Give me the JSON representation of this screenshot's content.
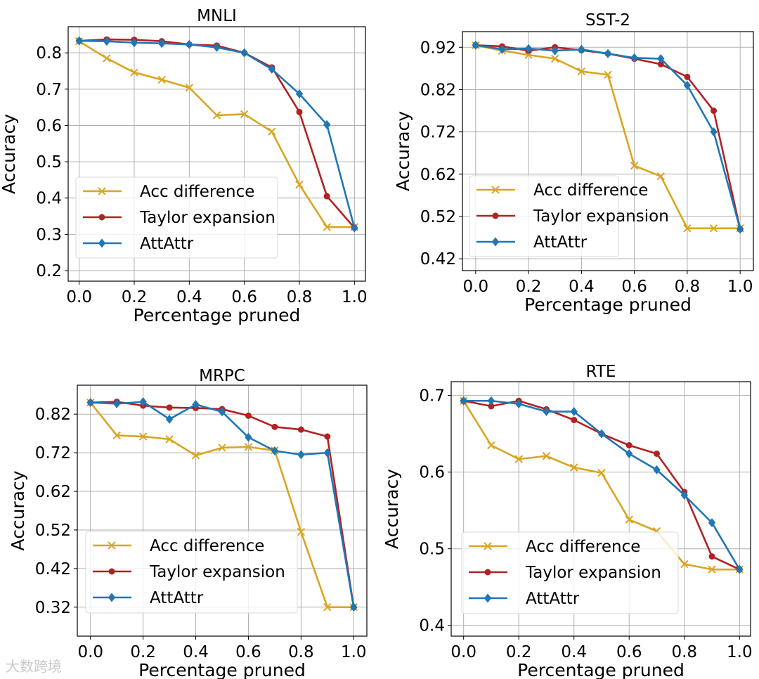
{
  "watermark": "大数跨境",
  "colors": {
    "acc_difference": "#DAA520",
    "taylor_expansion": "#B22222",
    "attattr": "#1F77B4",
    "grid": "#b0b0b0"
  },
  "chart_data": [
    {
      "type": "line",
      "title": "MNLI",
      "xlabel": "Percentage pruned",
      "ylabel": "Accuracy",
      "x": [
        0.0,
        0.1,
        0.2,
        0.3,
        0.4,
        0.5,
        0.6,
        0.7,
        0.8,
        0.9,
        1.0
      ],
      "xticks": [
        "0.0",
        "0.2",
        "0.4",
        "0.6",
        "0.8",
        "1.0"
      ],
      "yticks": [
        "0.2",
        "0.3",
        "0.4",
        "0.5",
        "0.6",
        "0.7",
        "0.8"
      ],
      "xlim": [
        -0.04,
        1.04
      ],
      "ylim": [
        0.171,
        0.872
      ],
      "grid": true,
      "legend_position": "lower-left",
      "series": [
        {
          "name": "Acc difference",
          "marker": "x",
          "values": [
            0.832,
            0.785,
            0.746,
            0.726,
            0.704,
            0.628,
            0.631,
            0.583,
            0.437,
            0.32,
            0.32
          ]
        },
        {
          "name": "Taylor expansion",
          "marker": "circle",
          "values": [
            0.833,
            0.837,
            0.836,
            0.832,
            0.823,
            0.82,
            0.8,
            0.76,
            0.637,
            0.405,
            0.318
          ]
        },
        {
          "name": "AttAttr",
          "marker": "diamond",
          "values": [
            0.833,
            0.832,
            0.828,
            0.826,
            0.823,
            0.815,
            0.8,
            0.755,
            0.687,
            0.602,
            0.318
          ]
        }
      ]
    },
    {
      "type": "line",
      "title": "SST-2",
      "xlabel": "Percentage pruned",
      "ylabel": "Accuracy",
      "x": [
        0.0,
        0.1,
        0.2,
        0.3,
        0.4,
        0.5,
        0.6,
        0.7,
        0.8,
        0.9,
        1.0
      ],
      "xticks": [
        "0.0",
        "0.2",
        "0.4",
        "0.6",
        "0.8",
        "1.0"
      ],
      "yticks": [
        "0.42",
        "0.52",
        "0.62",
        "0.72",
        "0.82",
        "0.92"
      ],
      "xlim": [
        -0.05,
        1.05
      ],
      "ylim": [
        0.392,
        0.957
      ],
      "grid": true,
      "legend_position": "lower-left",
      "series": [
        {
          "name": "Acc difference",
          "marker": "x",
          "values": [
            0.925,
            0.912,
            0.902,
            0.893,
            0.863,
            0.855,
            0.64,
            0.615,
            0.492,
            0.492,
            0.492
          ]
        },
        {
          "name": "Taylor expansion",
          "marker": "circle",
          "values": [
            0.925,
            0.922,
            0.912,
            0.92,
            0.913,
            0.905,
            0.893,
            0.88,
            0.85,
            0.77,
            0.49
          ]
        },
        {
          "name": "AttAttr",
          "marker": "diamond",
          "values": [
            0.925,
            0.915,
            0.917,
            0.912,
            0.915,
            0.905,
            0.895,
            0.893,
            0.83,
            0.72,
            0.49
          ]
        }
      ]
    },
    {
      "type": "line",
      "title": "MRPC",
      "xlabel": "Percentage pruned",
      "ylabel": "Accuracy",
      "x": [
        0.0,
        0.1,
        0.2,
        0.3,
        0.4,
        0.5,
        0.6,
        0.7,
        0.8,
        0.9,
        1.0
      ],
      "xticks": [
        "0.0",
        "0.2",
        "0.4",
        "0.6",
        "0.8",
        "1.0"
      ],
      "yticks": [
        "0.32",
        "0.42",
        "0.52",
        "0.62",
        "0.72",
        "0.82"
      ],
      "xlim": [
        -0.05,
        1.05
      ],
      "ylim": [
        0.245,
        0.895
      ],
      "grid": true,
      "legend_position": "lower-left",
      "series": [
        {
          "name": "Acc difference",
          "marker": "x",
          "values": [
            0.85,
            0.765,
            0.762,
            0.755,
            0.713,
            0.733,
            0.735,
            0.726,
            0.515,
            0.32,
            0.32
          ]
        },
        {
          "name": "Taylor expansion",
          "marker": "circle",
          "values": [
            0.85,
            0.852,
            0.842,
            0.837,
            0.836,
            0.833,
            0.816,
            0.787,
            0.78,
            0.762,
            0.32
          ]
        },
        {
          "name": "AttAttr",
          "marker": "diamond",
          "values": [
            0.85,
            0.847,
            0.852,
            0.807,
            0.845,
            0.826,
            0.76,
            0.725,
            0.715,
            0.72,
            0.32
          ]
        }
      ]
    },
    {
      "type": "line",
      "title": "RTE",
      "xlabel": "Percentage pruned",
      "ylabel": "Accuracy",
      "x": [
        0.0,
        0.1,
        0.2,
        0.3,
        0.4,
        0.5,
        0.6,
        0.7,
        0.8,
        0.9,
        1.0
      ],
      "xticks": [
        "0.0",
        "0.2",
        "0.4",
        "0.6",
        "0.8",
        "1.0"
      ],
      "yticks": [
        "0.4",
        "0.5",
        "0.6",
        "0.7"
      ],
      "xlim": [
        -0.045,
        1.04
      ],
      "ylim": [
        0.386,
        0.718
      ],
      "grid": true,
      "legend_position": "lower-left",
      "series": [
        {
          "name": "Acc difference",
          "marker": "x",
          "values": [
            0.693,
            0.635,
            0.617,
            0.621,
            0.606,
            0.599,
            0.538,
            0.523,
            0.48,
            0.473,
            0.473
          ]
        },
        {
          "name": "Taylor expansion",
          "marker": "circle",
          "values": [
            0.693,
            0.686,
            0.693,
            0.682,
            0.668,
            0.65,
            0.635,
            0.624,
            0.574,
            0.49,
            0.473
          ]
        },
        {
          "name": "AttAttr",
          "marker": "diamond",
          "values": [
            0.693,
            0.693,
            0.689,
            0.679,
            0.679,
            0.65,
            0.624,
            0.603,
            0.57,
            0.534,
            0.473
          ]
        }
      ]
    }
  ]
}
